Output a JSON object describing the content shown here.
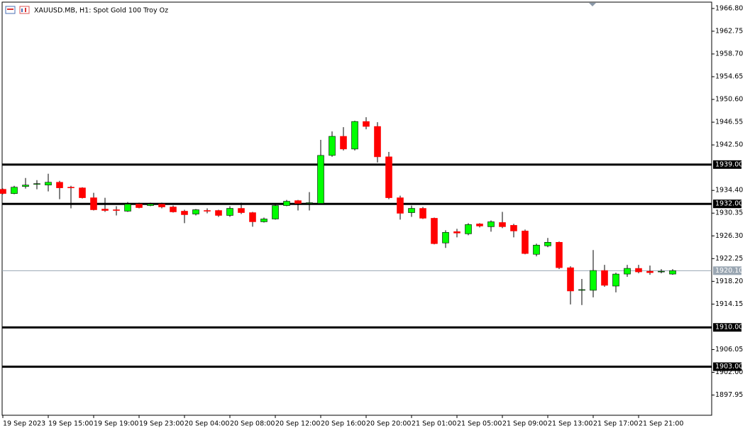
{
  "chart_data": {
    "type": "candlestick",
    "title": "XAUUSD.MB, H1:  Spot Gold 100 Troy Oz",
    "categories": [
      "19 Sep 2023",
      null,
      null,
      null,
      "19 Sep 15:00",
      null,
      null,
      null,
      "19 Sep 19:00",
      null,
      null,
      null,
      "19 Sep 23:00",
      null,
      null,
      null,
      "20 Sep 04:00",
      null,
      null,
      null,
      "20 Sep 08:00",
      null,
      null,
      null,
      "20 Sep 12:00",
      null,
      null,
      null,
      "20 Sep 16:00",
      null,
      null,
      null,
      "20 Sep 20:00",
      null,
      null,
      null,
      "21 Sep 01:00",
      null,
      null,
      null,
      "21 Sep 05:00",
      null,
      null,
      null,
      "21 Sep 09:00",
      null,
      null,
      null,
      "21 Sep 13:00",
      null,
      null,
      null,
      "21 Sep 17:00",
      null,
      null,
      null,
      "21 Sep 21:00",
      null,
      null,
      null
    ],
    "open": [
      1934.6,
      1933.84,
      1935.1,
      1935.48,
      1935.35,
      1935.85,
      1934.97,
      1934.85,
      1933.09,
      1931.07,
      1930.95,
      1930.7,
      1931.95,
      1931.7,
      1931.95,
      1931.45,
      1930.7,
      1930.19,
      1930.82,
      1930.82,
      1929.94,
      1931.2,
      1930.44,
      1928.81,
      1929.31,
      1931.7,
      1932.58,
      1932.08,
      1932.08,
      1940.63,
      1944.03,
      1941.77,
      1946.67,
      1945.79,
      1940.38,
      1933.09,
      1930.44,
      1931.2,
      1929.44,
      1925.04,
      1927.05,
      1926.67,
      1928.43,
      1927.93,
      1928.68,
      1928.18,
      1927.17,
      1923.02,
      1924.53,
      1925.16,
      1920.63,
      1916.61,
      1916.61,
      1920.13,
      1917.36,
      1919.5,
      1920.51,
      1920.0,
      1919.88,
      1919.5
    ],
    "high": [
      1934.72,
      1935.22,
      1936.61,
      1936.23,
      1937.36,
      1936.11,
      1935.22,
      1934.97,
      1933.97,
      1933.09,
      1931.58,
      1932.33,
      1932.21,
      1932.21,
      1932.21,
      1931.7,
      1930.95,
      1931.07,
      1931.2,
      1930.95,
      1931.58,
      1932.21,
      1930.57,
      1929.56,
      1932.08,
      1932.71,
      1932.71,
      1934.09,
      1943.4,
      1944.91,
      1945.67,
      1946.8,
      1947.43,
      1946.55,
      1941.26,
      1933.46,
      1931.7,
      1931.45,
      1929.56,
      1927.3,
      1927.55,
      1928.56,
      1928.56,
      1929.06,
      1930.57,
      1928.43,
      1927.43,
      1924.91,
      1925.92,
      1925.29,
      1920.88,
      1918.62,
      1923.78,
      1921.14,
      1919.75,
      1921.14,
      1921.14,
      1921.01,
      1920.38,
      1920.38
    ],
    "low": [
      1933.72,
      1933.72,
      1934.72,
      1934.6,
      1934.22,
      1932.83,
      1931.2,
      1932.96,
      1930.82,
      1930.57,
      1929.94,
      1930.57,
      1931.2,
      1931.58,
      1931.2,
      1930.44,
      1928.56,
      1929.94,
      1930.32,
      1929.69,
      1929.69,
      1930.19,
      1927.93,
      1928.68,
      1929.19,
      1931.58,
      1930.82,
      1930.82,
      1931.95,
      1940.38,
      1941.51,
      1941.51,
      1945.29,
      1939.38,
      1932.83,
      1929.19,
      1929.69,
      1929.31,
      1924.78,
      1924.15,
      1926.04,
      1926.42,
      1927.8,
      1927.05,
      1927.68,
      1926.04,
      1923.02,
      1922.65,
      1924.28,
      1920.38,
      1914.09,
      1913.97,
      1915.35,
      1917.24,
      1916.23,
      1919.0,
      1919.63,
      1919.37,
      1919.63,
      1919.37
    ],
    "close": [
      1933.84,
      1934.97,
      1935.35,
      1935.6,
      1935.85,
      1934.85,
      1934.85,
      1933.09,
      1930.95,
      1930.82,
      1930.82,
      1931.95,
      1931.33,
      1931.95,
      1931.45,
      1930.57,
      1930.07,
      1930.95,
      1930.7,
      1929.94,
      1931.2,
      1930.44,
      1928.81,
      1929.31,
      1931.7,
      1932.46,
      1932.08,
      1932.21,
      1940.63,
      1944.03,
      1941.77,
      1946.67,
      1945.79,
      1940.38,
      1933.09,
      1930.32,
      1931.2,
      1929.44,
      1924.91,
      1926.92,
      1926.8,
      1928.31,
      1928.05,
      1928.81,
      1927.93,
      1927.17,
      1923.15,
      1924.66,
      1925.16,
      1920.63,
      1916.48,
      1916.73,
      1920.13,
      1917.49,
      1919.5,
      1920.51,
      1919.88,
      1919.75,
      1920.0,
      1920.1
    ],
    "up_color": "#00ff00",
    "down_color": "#ff0000",
    "ylim": [
      1894.35,
      1967.93
    ],
    "yticks": [
      {
        "value": 1966.8,
        "label": "1966.80"
      },
      {
        "value": 1962.75,
        "label": "1962.75"
      },
      {
        "value": 1958.7,
        "label": "1958.70"
      },
      {
        "value": 1954.65,
        "label": "1954.65"
      },
      {
        "value": 1950.6,
        "label": "1950.60"
      },
      {
        "value": 1946.55,
        "label": "1946.55"
      },
      {
        "value": 1942.5,
        "label": "1942.50"
      },
      {
        "value": 1934.4,
        "label": "1934.40"
      },
      {
        "value": 1930.35,
        "label": "1930.35"
      },
      {
        "value": 1926.3,
        "label": "1926.30"
      },
      {
        "value": 1922.25,
        "label": "1922.25"
      },
      {
        "value": 1918.2,
        "label": "1918.20"
      },
      {
        "value": 1914.15,
        "label": "1914.15"
      },
      {
        "value": 1906.05,
        "label": "1906.05"
      },
      {
        "value": 1902,
        "label": "1902.00"
      },
      {
        "value": 1897.95,
        "label": "1897.95"
      }
    ],
    "levels": [
      {
        "value": 1939,
        "label": "1939.00"
      },
      {
        "value": 1932,
        "label": "1932.00"
      },
      {
        "value": 1910,
        "label": "1910.00"
      },
      {
        "value": 1903,
        "label": "1903.00"
      }
    ],
    "current_price": {
      "value": 1920.1,
      "label": "1920.10"
    }
  }
}
